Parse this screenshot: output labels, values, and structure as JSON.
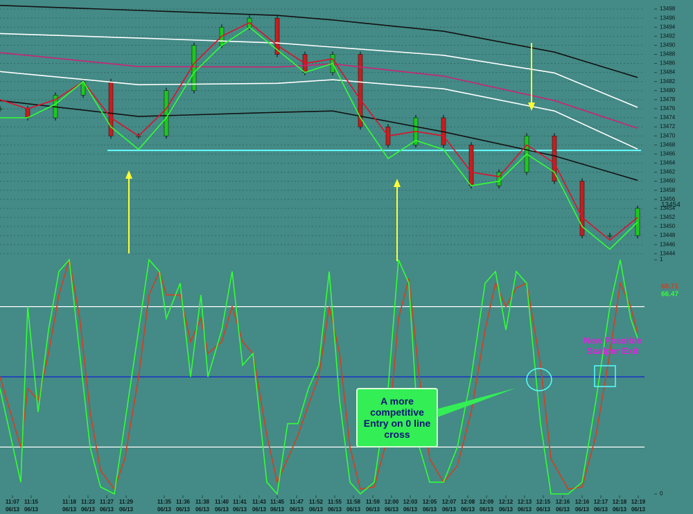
{
  "chart_data": [
    {
      "type": "line",
      "grid": true,
      "xlim": [
        0,
        930
      ],
      "ylim": [
        13442.66,
        13500
      ],
      "yticks": [
        13444,
        13446,
        13448,
        13450,
        13452,
        13454,
        13456,
        13458,
        13460,
        13462,
        13464,
        13466,
        13468,
        13470,
        13472,
        13474,
        13476,
        13478,
        13480,
        13482,
        13484,
        13486,
        13488,
        13490,
        13492,
        13494,
        13496,
        13498
      ],
      "x": [
        0,
        40,
        80,
        120,
        160,
        200,
        240,
        280,
        320,
        360,
        400,
        440,
        480,
        520,
        560,
        600,
        640,
        680,
        720,
        760,
        800,
        840,
        880,
        920
      ],
      "series": [
        {
          "style": "candles",
          "up_color": "#1ec81e",
          "down_color": "#c81e1e",
          "values": [
            13476,
            13474,
            13479,
            13482,
            13470,
            13470,
            13480,
            13490,
            13494,
            13496,
            13488,
            13484,
            13488,
            13472,
            13468,
            13474,
            13468,
            13459,
            13462,
            13470,
            13460,
            13448,
            13448,
            13454
          ]
        },
        {
          "color": "#111111",
          "x": [
            0,
            200,
            400,
            480,
            640,
            800,
            920
          ],
          "values": [
            13498.8,
            13497.7,
            13496.6,
            13495.6,
            13493.1,
            13488.5,
            13482.9
          ]
        },
        {
          "color": "#ffffff",
          "x": [
            0,
            200,
            400,
            480,
            640,
            800,
            920
          ],
          "values": [
            13492.6,
            13491.6,
            13490.5,
            13489.6,
            13487.8,
            13483.9,
            13476.3
          ]
        },
        {
          "color": "#cc2277",
          "x": [
            0,
            200,
            400,
            480,
            640,
            800,
            920
          ],
          "values": [
            13488.4,
            13485.3,
            13485.2,
            13485.9,
            13483.2,
            13477.8,
            13471.7
          ]
        },
        {
          "color": "#ffffff",
          "x": [
            0,
            200,
            400,
            480,
            640,
            800,
            920
          ],
          "values": [
            13484.2,
            13481.3,
            13481.6,
            13482.4,
            13480.4,
            13475.5,
            13467.1
          ]
        },
        {
          "color": "#111111",
          "x": [
            0,
            200,
            400,
            480,
            640,
            800,
            920
          ],
          "values": [
            13477.8,
            13474.3,
            13475.2,
            13475.5,
            13470.9,
            13465.6,
            13460.2
          ]
        },
        {
          "color": "#e0102a",
          "values": [
            13478,
            13476,
            13478,
            13482,
            13474,
            13470,
            13476,
            13486,
            13492,
            13495,
            13490,
            13486,
            13487,
            13478,
            13470,
            13471,
            13470,
            13462,
            13461,
            13468,
            13464,
            13452,
            13447,
            13452
          ]
        },
        {
          "color": "#33ff33",
          "values": [
            13474,
            13474,
            13477,
            13482,
            13472,
            13467,
            13474,
            13484,
            13490,
            13494,
            13489,
            13484,
            13486,
            13474,
            13465,
            13469,
            13467,
            13459,
            13460,
            13466,
            13462,
            13450,
            13445,
            13451
          ]
        }
      ],
      "hlines": [
        {
          "value": 13466.8,
          "x": [
            155,
            925
          ],
          "color": "#66ffff"
        }
      ]
    },
    {
      "type": "line",
      "xlim": [
        0,
        930
      ],
      "ylim": [
        0,
        100
      ],
      "yticks": [
        0,
        {
          "value": 100,
          "label": "1"
        }
      ],
      "levels": [
        {
          "value": 80,
          "color": "#ffffff"
        },
        {
          "value": 50,
          "color": "#1020d0"
        },
        {
          "value": 20,
          "color": "#ffffff"
        }
      ],
      "x": [
        0,
        30,
        40,
        55,
        70,
        85,
        100,
        115,
        130,
        145,
        165,
        180,
        200,
        215,
        230,
        240,
        260,
        275,
        290,
        300,
        320,
        335,
        350,
        365,
        385,
        400,
        415,
        430,
        445,
        460,
        475,
        490,
        505,
        520,
        540,
        560,
        575,
        590,
        605,
        620,
        640,
        660,
        680,
        700,
        715,
        730,
        745,
        760,
        780,
        795,
        820,
        840,
        860,
        880,
        895,
        910,
        920
      ],
      "series": [
        {
          "color": "#d04020",
          "values": [
            50,
            20,
            45,
            40,
            60,
            85,
            100,
            75,
            35,
            10,
            2,
            15,
            50,
            85,
            95,
            85,
            85,
            65,
            75,
            60,
            65,
            80,
            65,
            60,
            25,
            5,
            15,
            25,
            38,
            50,
            80,
            60,
            20,
            2,
            3,
            25,
            75,
            92,
            50,
            15,
            5,
            12,
            35,
            70,
            90,
            80,
            88,
            90,
            55,
            15,
            2,
            3,
            25,
            60,
            90,
            80,
            68.71
          ]
        },
        {
          "color": "#33ff33",
          "values": [
            45,
            5,
            80,
            35,
            70,
            95,
            100,
            60,
            20,
            3,
            0,
            30,
            70,
            100,
            95,
            75,
            90,
            50,
            85,
            50,
            70,
            95,
            55,
            60,
            5,
            0,
            30,
            30,
            45,
            55,
            95,
            40,
            5,
            0,
            5,
            45,
            100,
            90,
            20,
            5,
            5,
            20,
            50,
            90,
            95,
            70,
            95,
            90,
            30,
            0,
            0,
            5,
            40,
            80,
            100,
            75,
            66.47
          ]
        }
      ],
      "xticks": [
        {
          "value": 18,
          "label": "11:07",
          "date": "06/13"
        },
        {
          "value": 45,
          "label": "11:15",
          "date": "06/13"
        },
        {
          "value": 100,
          "label": "11:18",
          "date": "06/13"
        },
        {
          "value": 127,
          "label": "11:23",
          "date": "06/13"
        },
        {
          "value": 154,
          "label": "11:27",
          "date": "06/13"
        },
        {
          "value": 182,
          "label": "11:29",
          "date": "06/13"
        },
        {
          "value": 237,
          "label": "11:35",
          "date": "06/13"
        },
        {
          "value": 264,
          "label": "11:36",
          "date": "06/13"
        },
        {
          "value": 292,
          "label": "11:38",
          "date": "06/13"
        },
        {
          "value": 320,
          "label": "11:40",
          "date": "06/13"
        },
        {
          "value": 346,
          "label": "11:41",
          "date": "06/13"
        },
        {
          "value": 374,
          "label": "11:43",
          "date": "06/13"
        },
        {
          "value": 400,
          "label": "11:45",
          "date": "06/13"
        },
        {
          "value": 428,
          "label": "11:47",
          "date": "06/13"
        },
        {
          "value": 456,
          "label": "11:52",
          "date": "06/13"
        },
        {
          "value": 483,
          "label": "11:55",
          "date": "06/13"
        },
        {
          "value": 510,
          "label": "11:58",
          "date": "06/13"
        },
        {
          "value": 538,
          "label": "11:59",
          "date": "06/13"
        },
        {
          "value": 565,
          "label": "12:00",
          "date": "06/13"
        },
        {
          "value": 592,
          "label": "12:03",
          "date": "06/13"
        },
        {
          "value": 620,
          "label": "12:05",
          "date": "06/13"
        },
        {
          "value": 648,
          "label": "12:07",
          "date": "06/13"
        },
        {
          "value": 675,
          "label": "12:08",
          "date": "06/13"
        },
        {
          "value": 702,
          "label": "12:09",
          "date": "06/13"
        },
        {
          "value": 730,
          "label": "12:12",
          "date": "06/13"
        },
        {
          "value": 757,
          "label": "12:13",
          "date": "06/13"
        },
        {
          "value": 784,
          "label": "12:15",
          "date": "06/13"
        },
        {
          "value": 812,
          "label": "12:16",
          "date": "06/13"
        },
        {
          "value": 840,
          "label": "12:16",
          "date": "06/13"
        },
        {
          "value": 867,
          "label": "12:17",
          "date": "06/13"
        },
        {
          "value": 894,
          "label": "12:18",
          "date": "06/13"
        },
        {
          "value": 921,
          "label": "12:19",
          "date": "06/13"
        }
      ],
      "annotations": [
        "New Possible Scalper Exit",
        "A more competitive Entry on 0 line cross"
      ]
    }
  ]
}
